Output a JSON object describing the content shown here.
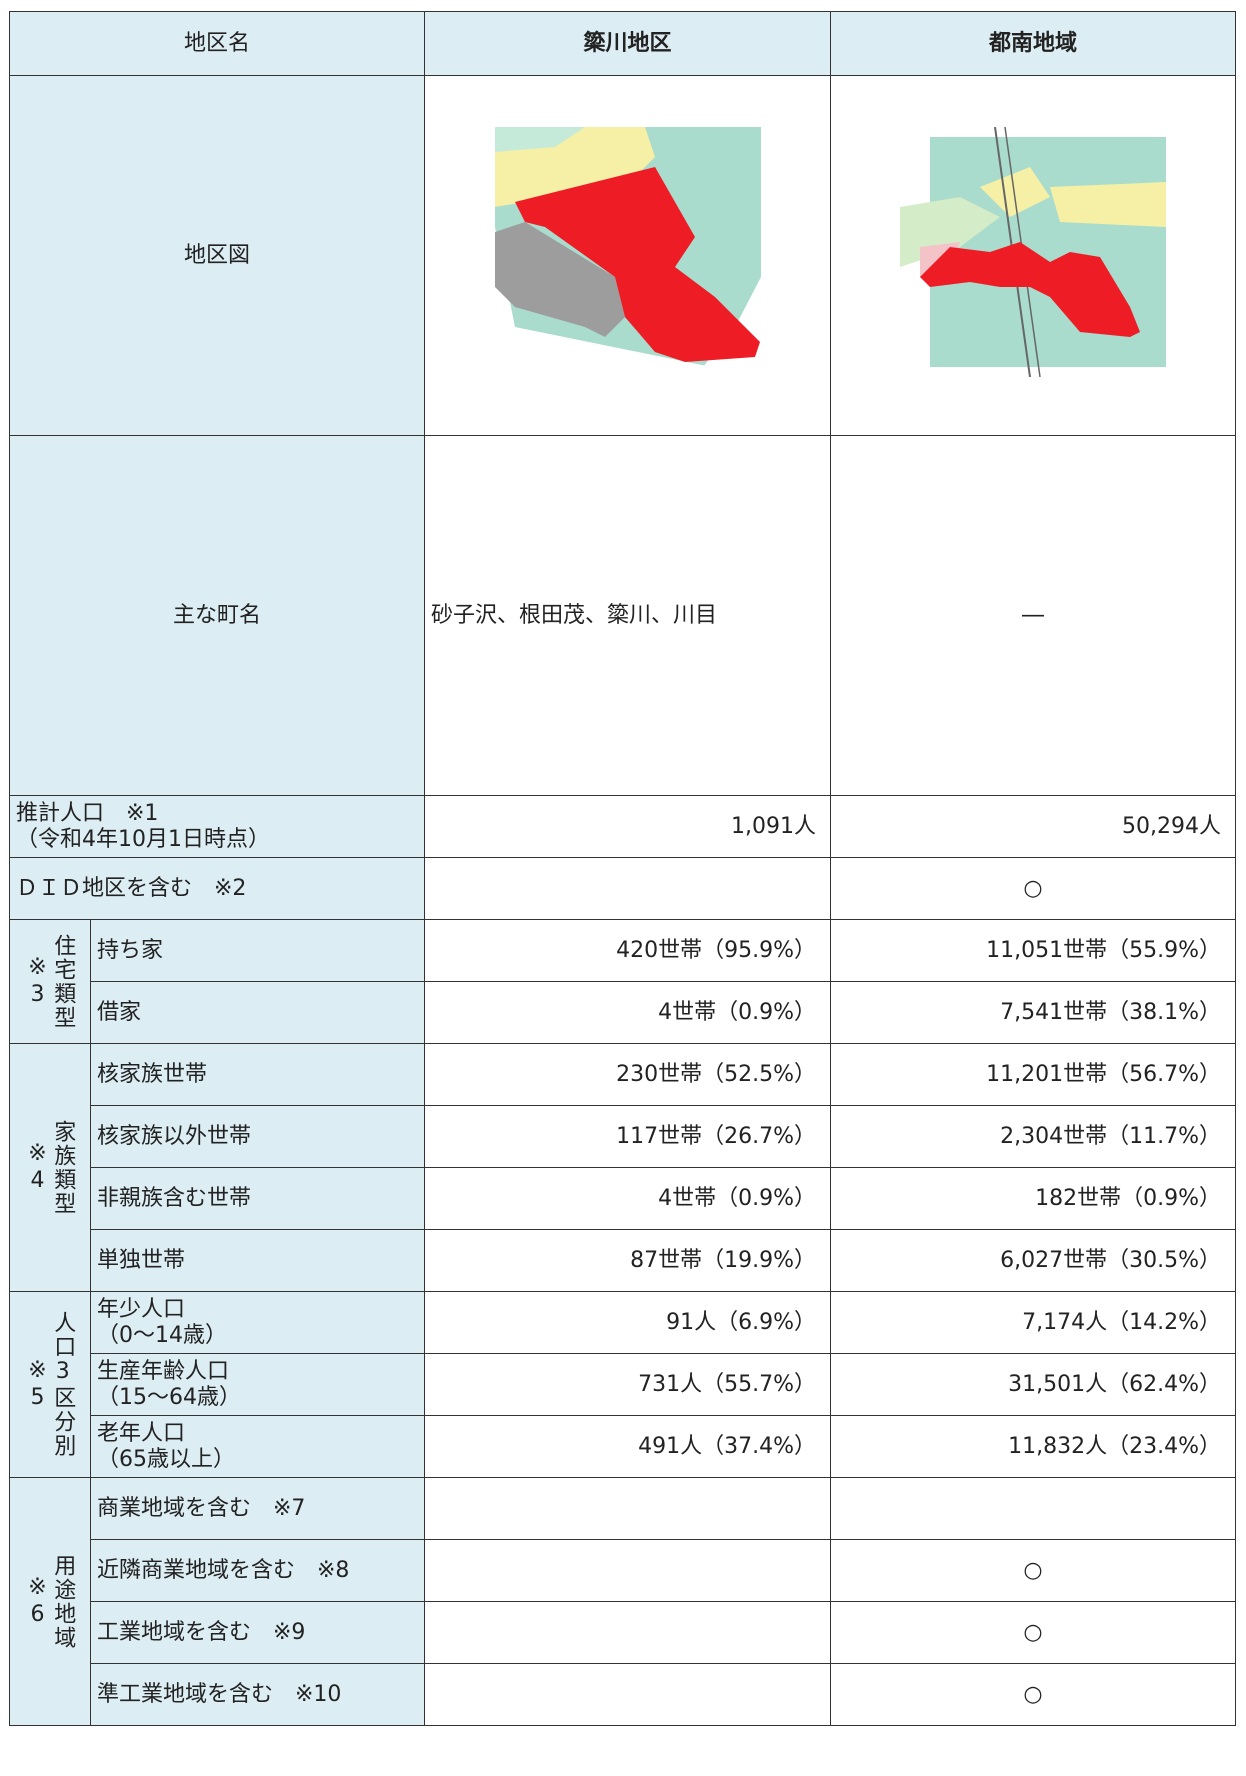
{
  "header": [
    "地区名",
    "簗川地区",
    "都南地域"
  ],
  "map_row": {
    "label": "地区図"
  },
  "town_row": {
    "label": "主な町名",
    "values": [
      "砂子沢、根田茂、簗川、川目",
      "―"
    ]
  },
  "single_rows": [
    {
      "label": [
        "推計人口　※1",
        "（令和4年10月1日時点）"
      ],
      "values": [
        "1,091人",
        "50,294人"
      ],
      "align": "right"
    },
    {
      "label": [
        "ＤＩＤ地区を含む　※2"
      ],
      "values": [
        null,
        "○"
      ],
      "align": "center"
    }
  ],
  "groups": [
    {
      "note": "※3",
      "label": "住宅類型",
      "align": "right",
      "rows": [
        {
          "label": [
            "持ち家"
          ],
          "values": [
            "420世帯（95.9%）",
            "11,051世帯（55.9%）"
          ]
        },
        {
          "label": [
            "借家"
          ],
          "values": [
            "4世帯（0.9%）",
            "7,541世帯（38.1%）"
          ]
        }
      ]
    },
    {
      "note": "※4",
      "label": "家族類型",
      "align": "right",
      "rows": [
        {
          "label": [
            "核家族世帯"
          ],
          "values": [
            "230世帯（52.5%）",
            "11,201世帯（56.7%）"
          ]
        },
        {
          "label": [
            "核家族以外世帯"
          ],
          "values": [
            "117世帯（26.7%）",
            "2,304世帯（11.7%）"
          ]
        },
        {
          "label": [
            "非親族含む世帯"
          ],
          "values": [
            "4世帯（0.9%）",
            "182世帯（0.9%）"
          ]
        },
        {
          "label": [
            "単独世帯"
          ],
          "values": [
            "87世帯（19.9%）",
            "6,027世帯（30.5%）"
          ]
        }
      ]
    },
    {
      "note": "※5",
      "label": "人口3区分別",
      "align": "right",
      "rows": [
        {
          "label": [
            "年少人口",
            "（0～14歳）"
          ],
          "values": [
            "91人（6.9%）",
            "7,174人（14.2%）"
          ]
        },
        {
          "label": [
            "生産年齢人口",
            "（15～64歳）"
          ],
          "values": [
            "731人（55.7%）",
            "31,501人（62.4%）"
          ]
        },
        {
          "label": [
            "老年人口",
            "（65歳以上）"
          ],
          "values": [
            "491人（37.4%）",
            "11,832人（23.4%）"
          ]
        }
      ]
    },
    {
      "note": "※6",
      "label": "用途地域",
      "align": "center",
      "rows": [
        {
          "label": [
            "商業地域を含む　※7"
          ],
          "values": [
            null,
            null
          ]
        },
        {
          "label": [
            "近隣商業地域を含む　※8"
          ],
          "values": [
            null,
            "○"
          ]
        },
        {
          "label": [
            "工業地域を含む　※9"
          ],
          "values": [
            null,
            "○"
          ]
        },
        {
          "label": [
            "準工業地域を含む　※10"
          ],
          "values": [
            null,
            "○"
          ]
        }
      ]
    }
  ]
}
